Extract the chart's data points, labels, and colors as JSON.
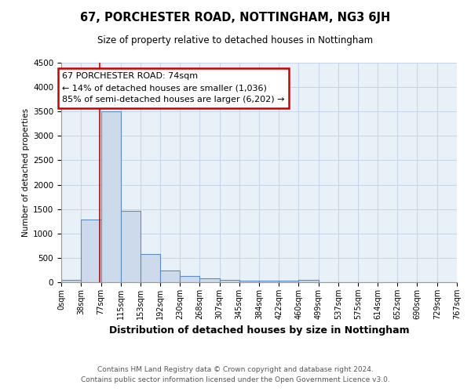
{
  "title": "67, PORCHESTER ROAD, NOTTINGHAM, NG3 6JH",
  "subtitle": "Size of property relative to detached houses in Nottingham",
  "xlabel": "Distribution of detached houses by size in Nottingham",
  "ylabel": "Number of detached properties",
  "footer1": "Contains HM Land Registry data © Crown copyright and database right 2024.",
  "footer2": "Contains public sector information licensed under the Open Government Licence v3.0.",
  "bin_edges": [
    0,
    38,
    77,
    115,
    153,
    192,
    230,
    268,
    307,
    345,
    384,
    422,
    460,
    499,
    537,
    575,
    614,
    652,
    690,
    729,
    767
  ],
  "bar_heights": [
    50,
    1280,
    3500,
    1470,
    575,
    245,
    130,
    85,
    55,
    40,
    30,
    30,
    55,
    5,
    0,
    0,
    0,
    0,
    0,
    0
  ],
  "bar_color": "#ccdaeb",
  "bar_edge_color": "#5b8ec2",
  "property_size": 74,
  "annotation_line1": "67 PORCHESTER ROAD: 74sqm",
  "annotation_line2": "← 14% of detached houses are smaller (1,036)",
  "annotation_line3": "85% of semi-detached houses are larger (6,202) →",
  "annotation_box_edgecolor": "#cc0000",
  "red_line_color": "#cc0000",
  "ylim": [
    0,
    4500
  ],
  "yticks": [
    0,
    500,
    1000,
    1500,
    2000,
    2500,
    3000,
    3500,
    4000,
    4500
  ],
  "grid_color": "#c5d4e8",
  "bg_color": "#e8f0f8"
}
